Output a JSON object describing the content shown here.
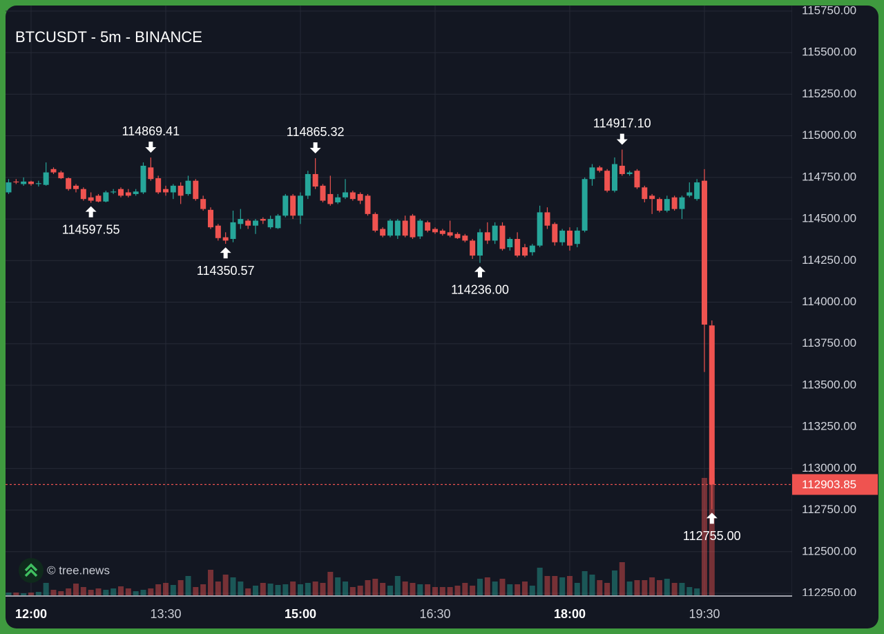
{
  "chart_data": {
    "type": "candlestick",
    "title": "BTCUSDT - 5m - BINANCE",
    "watermark": "© tree.news",
    "up_color": "#26a69a",
    "down_color": "#ef5350",
    "grid": true,
    "x": [
      "11:45",
      "11:50",
      "11:55",
      "12:00",
      "12:05",
      "12:10",
      "12:15",
      "12:20",
      "12:25",
      "12:30",
      "12:35",
      "12:40",
      "12:45",
      "12:50",
      "12:55",
      "13:00",
      "13:05",
      "13:10",
      "13:15",
      "13:20",
      "13:25",
      "13:30",
      "13:35",
      "13:40",
      "13:45",
      "13:50",
      "13:55",
      "14:00",
      "14:05",
      "14:10",
      "14:15",
      "14:20",
      "14:25",
      "14:30",
      "14:35",
      "14:40",
      "14:45",
      "14:50",
      "14:55",
      "15:00",
      "15:05",
      "15:10",
      "15:15",
      "15:20",
      "15:25",
      "15:30",
      "15:35",
      "15:40",
      "15:45",
      "15:50",
      "15:55",
      "16:00",
      "16:05",
      "16:10",
      "16:15",
      "16:20",
      "16:25",
      "16:30",
      "16:35",
      "16:40",
      "16:45",
      "16:50",
      "16:55",
      "17:00",
      "17:05",
      "17:10",
      "17:15",
      "17:20",
      "17:25",
      "17:30",
      "17:35",
      "17:40",
      "17:45",
      "17:50",
      "17:55",
      "18:00",
      "18:05",
      "18:10",
      "18:15",
      "18:20",
      "18:25",
      "18:30",
      "18:35",
      "18:40",
      "18:45",
      "18:50",
      "18:55",
      "19:00",
      "19:05",
      "19:10",
      "19:15",
      "19:20",
      "19:25",
      "19:30",
      "19:35"
    ],
    "open": [
      114660,
      114725,
      114710,
      114725,
      114710,
      114705,
      114800,
      114780,
      114745,
      114700,
      114680,
      114630,
      114640,
      114605,
      114660,
      114680,
      114660,
      114650,
      114660,
      114810,
      114745,
      114680,
      114660,
      114700,
      114650,
      114730,
      114620,
      114555,
      114460,
      114390,
      114380,
      114470,
      114490,
      114460,
      114500,
      114450,
      114445,
      114520,
      114640,
      114520,
      114640,
      114770,
      114700,
      114650,
      114600,
      114630,
      114660,
      114650,
      114640,
      114530,
      114440,
      114400,
      114400,
      114490,
      114520,
      114395,
      114480,
      114440,
      114430,
      114420,
      114410,
      114400,
      114370,
      114280,
      114420,
      114370,
      114460,
      114330,
      114380,
      114330,
      114300,
      114340,
      114540,
      114470,
      114360,
      114430,
      114350,
      114430,
      114740,
      114810,
      114790,
      114670,
      114820,
      114770,
      114790,
      114690,
      114640,
      114620,
      114550,
      114630,
      114560,
      114640,
      114620,
      114730,
      113860
    ],
    "high": [
      114740,
      114740,
      114750,
      114730,
      114730,
      114840,
      114810,
      114790,
      114750,
      114710,
      114690,
      114660,
      114650,
      114670,
      114680,
      114690,
      114680,
      114680,
      114840,
      114869.41,
      114760,
      114700,
      114710,
      114720,
      114760,
      114740,
      114640,
      114570,
      114470,
      114420,
      114550,
      114560,
      114500,
      114500,
      114510,
      114520,
      114530,
      114650,
      114650,
      114660,
      114790,
      114865.32,
      114710,
      114760,
      114650,
      114740,
      114670,
      114660,
      114650,
      114540,
      114450,
      114500,
      114500,
      114520,
      114530,
      114500,
      114490,
      114450,
      114440,
      114490,
      114420,
      114410,
      114380,
      114440,
      114480,
      114480,
      114480,
      114390,
      114420,
      114350,
      114350,
      114580,
      114570,
      114480,
      114440,
      114450,
      114450,
      114750,
      114830,
      114820,
      114800,
      114870,
      114917.1,
      114790,
      114800,
      114700,
      114650,
      114630,
      114640,
      114640,
      114640,
      114720,
      114740,
      114800,
      113890
    ],
    "low": [
      114650,
      114710,
      114700,
      114700,
      114695,
      114700,
      114770,
      114740,
      114670,
      114660,
      114610,
      114597.55,
      114600,
      114600,
      114650,
      114630,
      114630,
      114640,
      114650,
      114730,
      114650,
      114640,
      114620,
      114590,
      114640,
      114610,
      114550,
      114440,
      114370,
      114350.57,
      114360,
      114440,
      114440,
      114410,
      114470,
      114440,
      114440,
      114510,
      114500,
      114470,
      114620,
      114680,
      114600,
      114580,
      114590,
      114620,
      114610,
      114590,
      114520,
      114420,
      114390,
      114390,
      114380,
      114390,
      114380,
      114380,
      114420,
      114410,
      114400,
      114390,
      114380,
      114360,
      114260,
      114236,
      114350,
      114350,
      114310,
      114310,
      114270,
      114270,
      114280,
      114330,
      114440,
      114340,
      114340,
      114310,
      114330,
      114420,
      114700,
      114780,
      114660,
      114660,
      114760,
      114760,
      114680,
      114600,
      114530,
      114540,
      114540,
      114550,
      114500,
      114630,
      114610,
      113580,
      112755
    ],
    "close": [
      114720,
      114720,
      114725,
      114710,
      114715,
      114780,
      114780,
      114745,
      114680,
      114680,
      114620,
      114610,
      114605,
      114660,
      114665,
      114640,
      114640,
      114665,
      114820,
      114740,
      114660,
      114660,
      114700,
      114640,
      114730,
      114620,
      114560,
      114450,
      114385,
      114370,
      114480,
      114500,
      114460,
      114490,
      114490,
      114500,
      114520,
      114640,
      114520,
      114640,
      114770,
      114695,
      114610,
      114590,
      114630,
      114660,
      114620,
      114610,
      114530,
      114430,
      114400,
      114490,
      114490,
      114400,
      114390,
      114490,
      114430,
      114420,
      114410,
      114400,
      114385,
      114370,
      114280,
      114420,
      114370,
      114460,
      114320,
      114380,
      114280,
      114280,
      114340,
      114540,
      114460,
      114360,
      114430,
      114340,
      114430,
      114740,
      114810,
      114790,
      114670,
      114830,
      114770,
      114780,
      114690,
      114620,
      114620,
      114550,
      114620,
      114560,
      114630,
      114660,
      114720,
      113865,
      112903.85
    ],
    "volume": [
      4,
      4,
      3,
      4,
      5,
      18,
      8,
      6,
      10,
      17,
      12,
      8,
      10,
      8,
      10,
      13,
      10,
      6,
      8,
      10,
      16,
      18,
      15,
      22,
      28,
      12,
      16,
      37,
      20,
      30,
      26,
      20,
      10,
      14,
      18,
      17,
      15,
      16,
      20,
      16,
      18,
      20,
      18,
      34,
      26,
      20,
      12,
      14,
      22,
      24,
      18,
      14,
      28,
      20,
      18,
      16,
      16,
      12,
      12,
      12,
      14,
      18,
      14,
      24,
      26,
      20,
      24,
      16,
      16,
      20,
      14,
      40,
      28,
      28,
      26,
      28,
      18,
      35,
      30,
      22,
      18,
      36,
      48,
      20,
      22,
      22,
      26,
      22,
      24,
      18,
      18,
      12,
      10,
      170,
      170
    ],
    "ylim": [
      112250,
      115750
    ],
    "yticks": [
      {
        "value": 112250,
        "label": "112250.00"
      },
      {
        "value": 112500,
        "label": "112500.00"
      },
      {
        "value": 112750,
        "label": "112750.00"
      },
      {
        "value": 113000,
        "label": "113000.00"
      },
      {
        "value": 113250,
        "label": "113250.00"
      },
      {
        "value": 113500,
        "label": "113500.00"
      },
      {
        "value": 113750,
        "label": "113750.00"
      },
      {
        "value": 114000,
        "label": "114000.00"
      },
      {
        "value": 114250,
        "label": "114250.00"
      },
      {
        "value": 114500,
        "label": "114500.00"
      },
      {
        "value": 114750,
        "label": "114750.00"
      },
      {
        "value": 115000,
        "label": "115000.00"
      },
      {
        "value": 115250,
        "label": "115250.00"
      },
      {
        "value": 115500,
        "label": "115500.00"
      },
      {
        "value": 115750,
        "label": "115750.00"
      }
    ],
    "xticks": [
      "12:00",
      "13:30",
      "15:00",
      "16:30",
      "18:00",
      "19:30"
    ],
    "last_price": 112903.85,
    "annotations": [
      {
        "x": "12:40",
        "kind": "low",
        "value": 114597.55,
        "label": "114597.55"
      },
      {
        "x": "13:20",
        "kind": "high",
        "value": 114869.41,
        "label": "114869.41"
      },
      {
        "x": "14:10",
        "kind": "low",
        "value": 114350.57,
        "label": "114350.57"
      },
      {
        "x": "15:10",
        "kind": "high",
        "value": 114865.32,
        "label": "114865.32"
      },
      {
        "x": "17:00",
        "kind": "low",
        "value": 114236,
        "label": "114236.00"
      },
      {
        "x": "18:35",
        "kind": "high",
        "value": 114917.1,
        "label": "114917.10"
      },
      {
        "x": "19:35",
        "kind": "low",
        "value": 112755,
        "label": "112755.00"
      }
    ]
  }
}
